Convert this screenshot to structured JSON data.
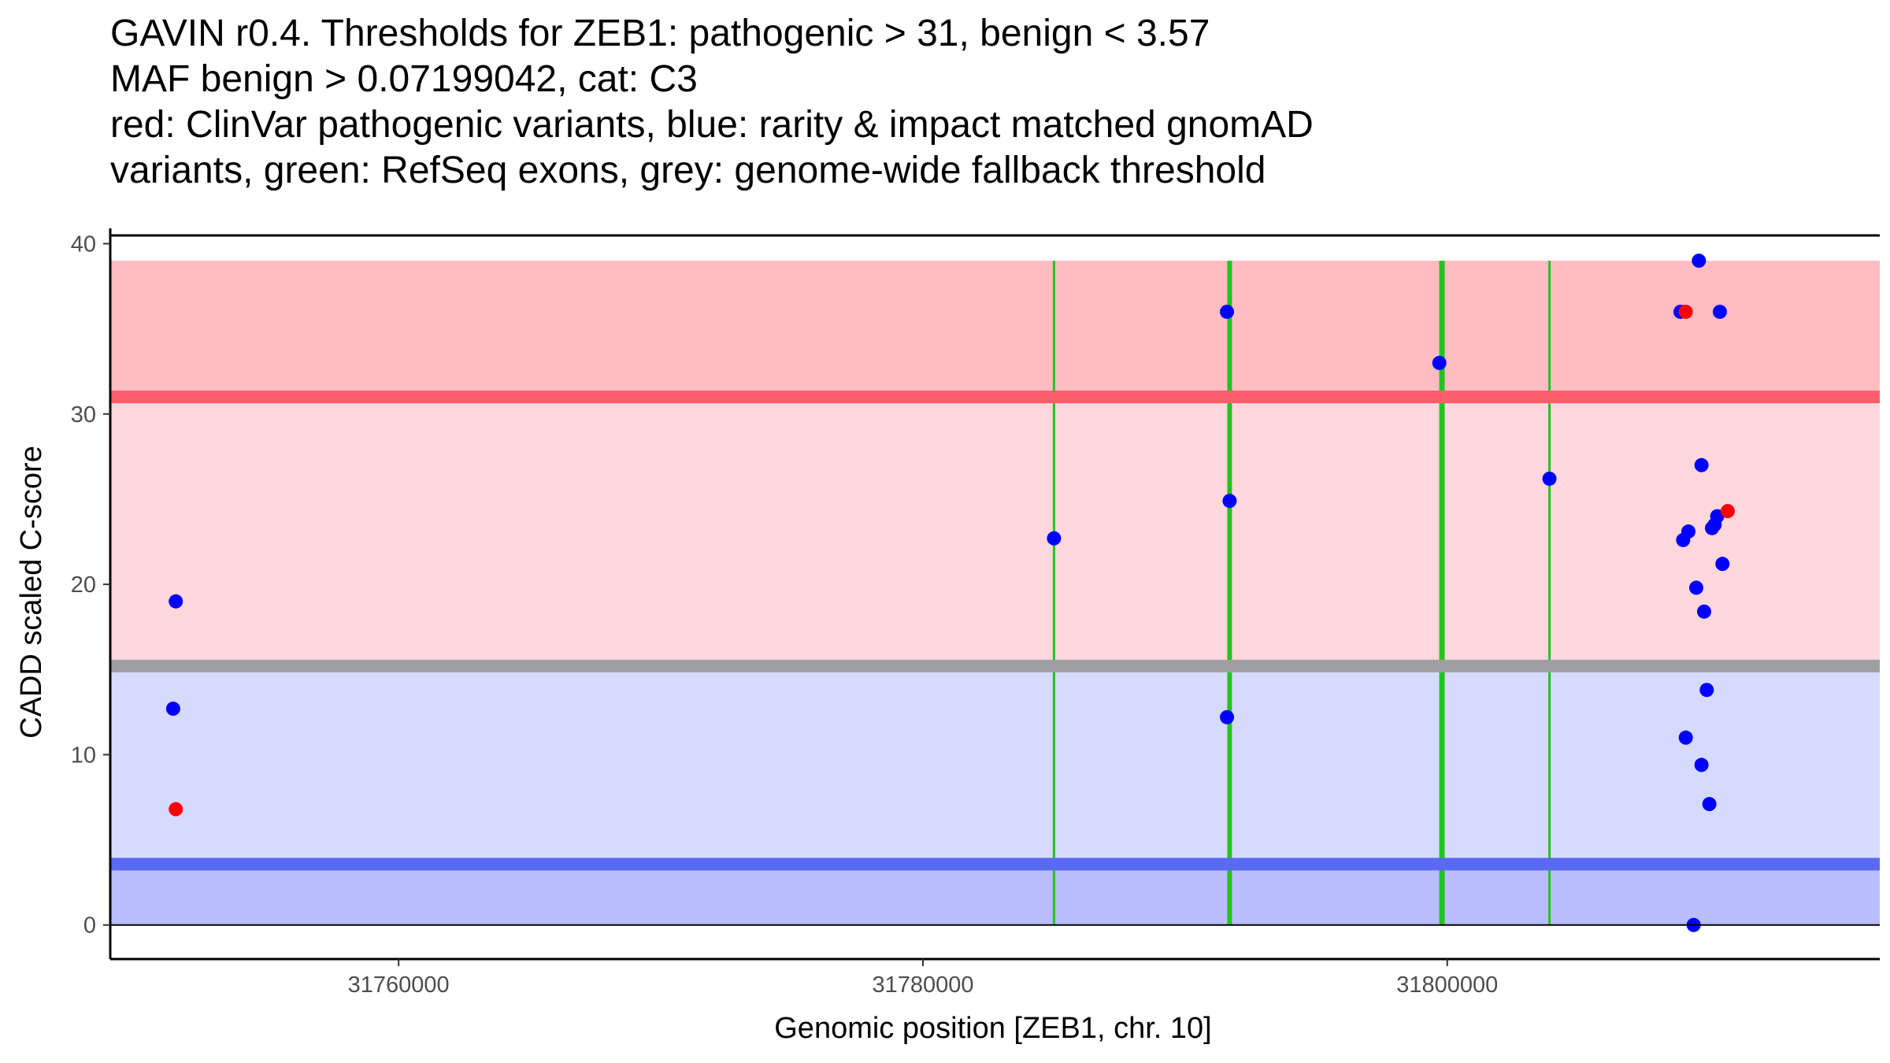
{
  "chart_data": {
    "type": "scatter",
    "title_lines": [
      "GAVIN r0.4. Thresholds for ZEB1: pathogenic > 31, benign < 3.57",
      "MAF benign > 0.07199042, cat: C3",
      "red: ClinVar pathogenic variants, blue: rarity & impact matched gnomAD",
      "variants, green: RefSeq exons, grey: genome-wide fallback threshold"
    ],
    "xlabel": "Genomic position [ZEB1, chr. 10]",
    "ylabel": "CADD scaled C-score",
    "xlim": [
      31749000,
      31816500
    ],
    "ylim": [
      -2,
      40.9
    ],
    "x_ticks": [
      31760000,
      31780000,
      31800000
    ],
    "x_tick_labels": [
      "31760000",
      "31780000",
      "31800000"
    ],
    "y_ticks": [
      0,
      10,
      20,
      30,
      40
    ],
    "y_tick_labels": [
      "0",
      "10",
      "20",
      "30",
      "40"
    ],
    "colors": {
      "pathogenic_band": "#ffbcc3",
      "middle_band": "#ffd7dc",
      "tolerant_band": "#d7daff",
      "benign_band": "#babdff",
      "pathogenic_line": "#fe5d6c",
      "fallback_line": "#9e9ea3",
      "benign_line": "#5a6af2",
      "exon": "#22c41f",
      "gnomad_point": "#0000ff",
      "clinvar_point": "#ff0000"
    },
    "bands": [
      {
        "name": "pathogenic-region",
        "y0": 31,
        "y1": 39,
        "color": "#ffbcc3"
      },
      {
        "name": "intermediate-region",
        "y0": 15.2,
        "y1": 31,
        "color": "#ffd7dc"
      },
      {
        "name": "tolerant-region",
        "y0": 3.57,
        "y1": 15.2,
        "color": "#d7daff"
      },
      {
        "name": "benign-region",
        "y0": 0,
        "y1": 3.57,
        "color": "#babdff"
      }
    ],
    "threshold_lines": [
      {
        "name": "pathogenic-threshold",
        "y": 31,
        "color": "#fe5d6c"
      },
      {
        "name": "fallback-threshold",
        "y": 15.2,
        "color": "#9e9ea3"
      },
      {
        "name": "benign-threshold",
        "y": 3.57,
        "color": "#5a6af2"
      }
    ],
    "exons": [
      {
        "x": 31785000,
        "width": 3
      },
      {
        "x": 31791700,
        "width": 6
      },
      {
        "x": 31799800,
        "width": 7
      },
      {
        "x": 31803900,
        "width": 3
      }
    ],
    "series": [
      {
        "name": "gnomAD matched variants",
        "color": "#0000ff",
        "points": [
          {
            "x": 31751500,
            "y": 19.0
          },
          {
            "x": 31751400,
            "y": 12.7
          },
          {
            "x": 31785000,
            "y": 22.7
          },
          {
            "x": 31791600,
            "y": 36.0
          },
          {
            "x": 31791700,
            "y": 24.9
          },
          {
            "x": 31791600,
            "y": 12.2
          },
          {
            "x": 31799700,
            "y": 33.0
          },
          {
            "x": 31803900,
            "y": 26.2
          },
          {
            "x": 31808900,
            "y": 36.0
          },
          {
            "x": 31809600,
            "y": 39.0
          },
          {
            "x": 31810400,
            "y": 36.0
          },
          {
            "x": 31809700,
            "y": 27.0
          },
          {
            "x": 31810300,
            "y": 24.0
          },
          {
            "x": 31810200,
            "y": 23.5
          },
          {
            "x": 31810100,
            "y": 23.3
          },
          {
            "x": 31809200,
            "y": 23.1
          },
          {
            "x": 31809000,
            "y": 22.6
          },
          {
            "x": 31810500,
            "y": 21.2
          },
          {
            "x": 31809500,
            "y": 19.8
          },
          {
            "x": 31809800,
            "y": 18.4
          },
          {
            "x": 31809900,
            "y": 13.8
          },
          {
            "x": 31809100,
            "y": 11.0
          },
          {
            "x": 31809700,
            "y": 9.4
          },
          {
            "x": 31810000,
            "y": 7.1
          },
          {
            "x": 31809400,
            "y": 0.0
          }
        ]
      },
      {
        "name": "ClinVar pathogenic variants",
        "color": "#ff0000",
        "points": [
          {
            "x": 31751500,
            "y": 6.8
          },
          {
            "x": 31809100,
            "y": 36.0
          },
          {
            "x": 31810700,
            "y": 24.3
          }
        ]
      }
    ]
  }
}
